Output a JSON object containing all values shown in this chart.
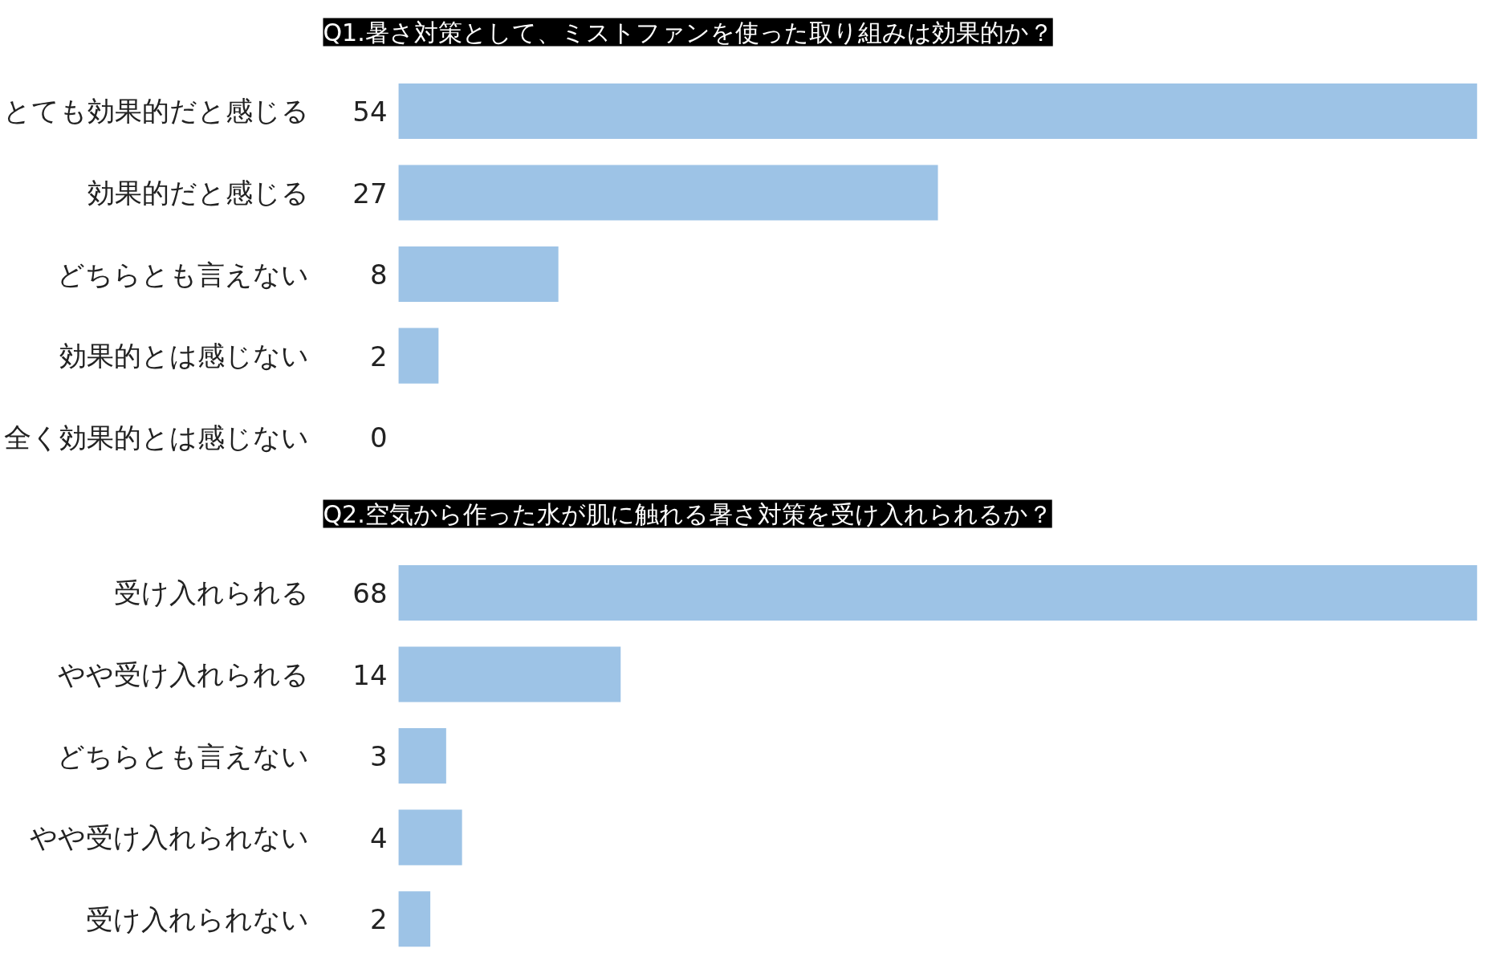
{
  "chart_data": [
    {
      "type": "bar",
      "orientation": "horizontal",
      "title": "Q1.暑さ対策として、ミストファンを使った取り組みは効果的か？",
      "categories": [
        "とても効果的だと感じる",
        "効果的だと感じる",
        "どちらとも言えない",
        "効果的とは感じない",
        "全く効果的とは感じない"
      ],
      "values": [
        54,
        27,
        8,
        2,
        0
      ],
      "color": "#9dc3e6",
      "data_labels": true,
      "grid": false,
      "tick_labels": "y"
    },
    {
      "type": "bar",
      "orientation": "horizontal",
      "title": "Q2.空気から作った水が肌に触れる暑さ対策を受け入れられるか？",
      "categories": [
        "受け入れられる",
        "やや受け入れられる",
        "どちらとも言えない",
        "やや受け入れられない",
        "受け入れられない"
      ],
      "values": [
        68,
        14,
        3,
        4,
        2
      ],
      "color": "#9dc3e6",
      "data_labels": true,
      "grid": false,
      "tick_labels": "y"
    }
  ]
}
